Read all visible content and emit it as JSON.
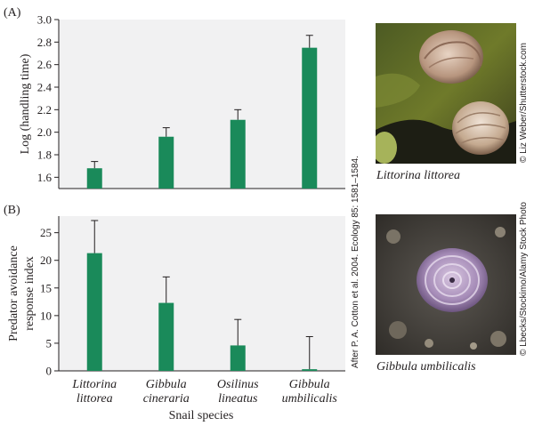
{
  "panel_a": {
    "label": "(A)",
    "photo_caption": "Littorina littorea",
    "photo_credit": "© Liz Weber/Shutterstock.com"
  },
  "panel_b": {
    "label": "(B)",
    "photo_caption": "Gibbula umbilicalis",
    "photo_credit": "© Lbecks/Stockimo/Alamy Stock Photo"
  },
  "source_note": "After P. A. Cotton et al. 2004. Ecology 85: 1581–1584.",
  "colors": {
    "bar": "#1a8a5a",
    "panel_bg": "#f1f1f2",
    "axis": "#231f20"
  },
  "chart_data": [
    {
      "type": "bar",
      "categories": [
        "Littorina littorea",
        "Gibbula cineraria",
        "Osilinus lineatus",
        "Gibbula umbilicalis"
      ],
      "values": [
        1.68,
        1.96,
        2.11,
        2.75
      ],
      "error_plus": [
        0.06,
        0.08,
        0.09,
        0.11
      ],
      "ylabel": "Log (handling time)",
      "xlabel": "",
      "ylim": [
        1.5,
        3.0
      ],
      "yticks": [
        "1.6",
        "1.8",
        "2.0",
        "2.2",
        "2.4",
        "2.6",
        "2.8",
        "3.0"
      ],
      "title": ""
    },
    {
      "type": "bar",
      "categories": [
        "Littorina littorea",
        "Gibbula cineraria",
        "Osilinus lineatus",
        "Gibbula umbilicalis"
      ],
      "category_lines": [
        [
          "Littorina",
          "littorea"
        ],
        [
          "Gibbula",
          "cineraria"
        ],
        [
          "Osilinus",
          "lineatus"
        ],
        [
          "Gibbula",
          "umbilicalis"
        ]
      ],
      "values": [
        21.3,
        12.3,
        4.6,
        0.3
      ],
      "error_plus": [
        5.9,
        4.7,
        4.7,
        5.9
      ],
      "ylabel_lines": [
        "Predator avoidance",
        "response index"
      ],
      "xlabel": "Snail species",
      "ylim": [
        0,
        28
      ],
      "yticks": [
        "0",
        "5",
        "10",
        "15",
        "20",
        "25"
      ],
      "title": ""
    }
  ]
}
